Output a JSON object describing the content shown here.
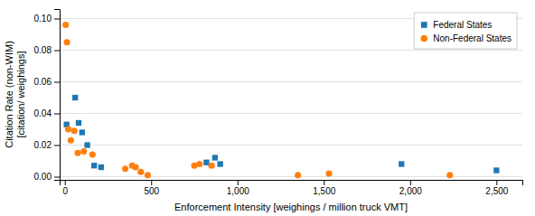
{
  "chart_data": {
    "type": "scatter",
    "xlabel": "Enforcement Intensity [weighings / million truck VMT]",
    "ylabel": "Citation Rate (non-WIM)\n[citation/ weighings]",
    "series": [
      {
        "name": "Federal States",
        "marker": "square",
        "x": [
          10,
          60,
          80,
          100,
          130,
          170,
          210,
          820,
          870,
          900,
          1950,
          2500
        ],
        "values": [
          0.033,
          0.05,
          0.034,
          0.028,
          0.02,
          0.007,
          0.006,
          0.009,
          0.012,
          0.008,
          0.008,
          0.004
        ]
      },
      {
        "name": "Non-Federal States",
        "marker": "circle",
        "x": [
          5,
          12,
          20,
          35,
          55,
          75,
          110,
          160,
          350,
          390,
          410,
          440,
          480,
          750,
          780,
          850,
          1350,
          1530,
          2230
        ],
        "values": [
          0.096,
          0.085,
          0.03,
          0.023,
          0.029,
          0.015,
          0.016,
          0.014,
          0.005,
          0.007,
          0.006,
          0.003,
          0.001,
          0.007,
          0.008,
          0.007,
          0.001,
          0.002,
          0.001
        ]
      }
    ],
    "xlim": [
      -30,
      2650
    ],
    "ylim": [
      -0.002,
      0.106
    ],
    "xticks": [
      0,
      500,
      {
        "value": 1000,
        "label": "1,000"
      },
      {
        "value": 1500,
        "label": "1,500"
      },
      {
        "value": 2000,
        "label": "2,000"
      },
      {
        "value": 2500,
        "label": "2,500"
      }
    ],
    "yticks": [
      {
        "value": 0,
        "label": "0.00"
      },
      0.02,
      0.04,
      0.06,
      0.08,
      {
        "value": 0.1,
        "label": "0.10"
      }
    ],
    "grid": "y",
    "legend": "upper right"
  }
}
